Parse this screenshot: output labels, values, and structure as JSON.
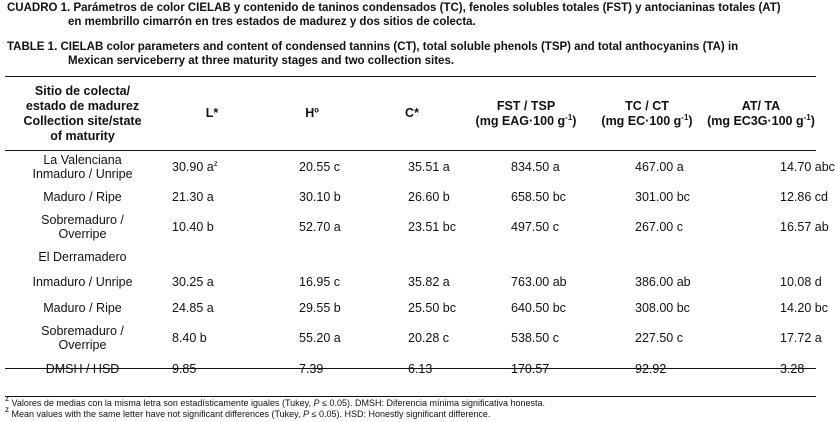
{
  "caption_es": {
    "label": "CUADRO 1.",
    "line1": "Parámetros de color CIELAB y contenido de taninos condensados (TC), fenoles solubles totales (FST) y antocianinas totales (AT)",
    "line2": "en membrillo cimarrón en tres estados de madurez y dos sitios de colecta."
  },
  "caption_en": {
    "label": "TABLE 1.",
    "line1": "CIELAB color parameters and content of condensed tannins (CT), total soluble phenols (TSP) and total anthocyanins (TA) in",
    "line2": "Mexican serviceberry at three maturity stages and two collection sites."
  },
  "headers": {
    "col0": [
      "Sitio de colecta/",
      "estado de madurez",
      "Collection site/state",
      "of maturity"
    ],
    "col1": "L*",
    "col2": "Hº",
    "col3": "C*",
    "col4": {
      "line1": "FST / TSP",
      "unit_pre": "(mg EAG·100 g",
      "unit_exp": "-1",
      "unit_post": ")"
    },
    "col5": {
      "line1": "TC / CT",
      "unit_pre": "(mg EC·100 g",
      "unit_exp": "-1",
      "unit_post": ")"
    },
    "col6": {
      "line1": "AT/ TA",
      "unit_pre": "(mg EC3G·100 g",
      "unit_exp": "-1",
      "unit_post": ")"
    }
  },
  "rows": [
    {
      "stage": [
        "La Valenciana",
        "Inmaduro / Unripe"
      ],
      "L": "30.90 a",
      "L_sup": "z",
      "H": "20.55 c",
      "C": "35.51 a",
      "FST": "834.50 a",
      "TC": "467.00 a",
      "AT": "14.70 abc"
    },
    {
      "stage": [
        "Maduro / Ripe"
      ],
      "L": "21.30 a",
      "H": "30.10 b",
      "C": "26.60 b",
      "FST": "658.50 bc",
      "TC": "301.00 bc",
      "AT": "12.86 cd"
    },
    {
      "stage": [
        "Sobremaduro /",
        "Overripe"
      ],
      "L": "10.40 b",
      "H": "52.70 a",
      "C": "23.51 bc",
      "FST": "497.50 c",
      "TC": "267.00 c",
      "AT": "16.57 ab"
    },
    {
      "site": "El Derramadero"
    },
    {
      "stage": [
        "Inmaduro / Unripe"
      ],
      "L": "30.25 a",
      "H": "16.95 c",
      "C": "35.82 a",
      "FST": "763.00 ab",
      "TC": "386.00 ab",
      "AT": "10.08 d"
    },
    {
      "stage": [
        "Maduro / Ripe"
      ],
      "L": "24.85 a",
      "H": "29.55 b",
      "C": "25.50 bc",
      "FST": "640.50 bc",
      "TC": "308.00 bc",
      "AT": "14.20 bc"
    },
    {
      "stage": [
        "Sobremaduro /",
        "Overripe"
      ],
      "L": "8.40 b",
      "H": "55.20 a",
      "C": "20.28 c",
      "FST": "538.50 c",
      "TC": "227.50 c",
      "AT": "17.72 a"
    }
  ],
  "hsd_row": {
    "label": "DMSH / HSD",
    "L": "9.85",
    "H": "7.39",
    "C": "6.13",
    "FST": "170.57",
    "TC": "92.92",
    "AT": "3.28"
  },
  "footnotes": [
    {
      "mark": "z",
      "pre": " Valores de medias con la misma letra son estadísticamente iguales (Tukey, ",
      "ital": "P",
      "post": " ≤ 0.05). DMSH: Diferencia mínima significativa honesta."
    },
    {
      "mark": "z",
      "pre": " Mean values with the same letter have not significant differences (Tukey, ",
      "ital": "P",
      "post": " ≤ 0.05). HSD: Honestly significant difference."
    }
  ]
}
